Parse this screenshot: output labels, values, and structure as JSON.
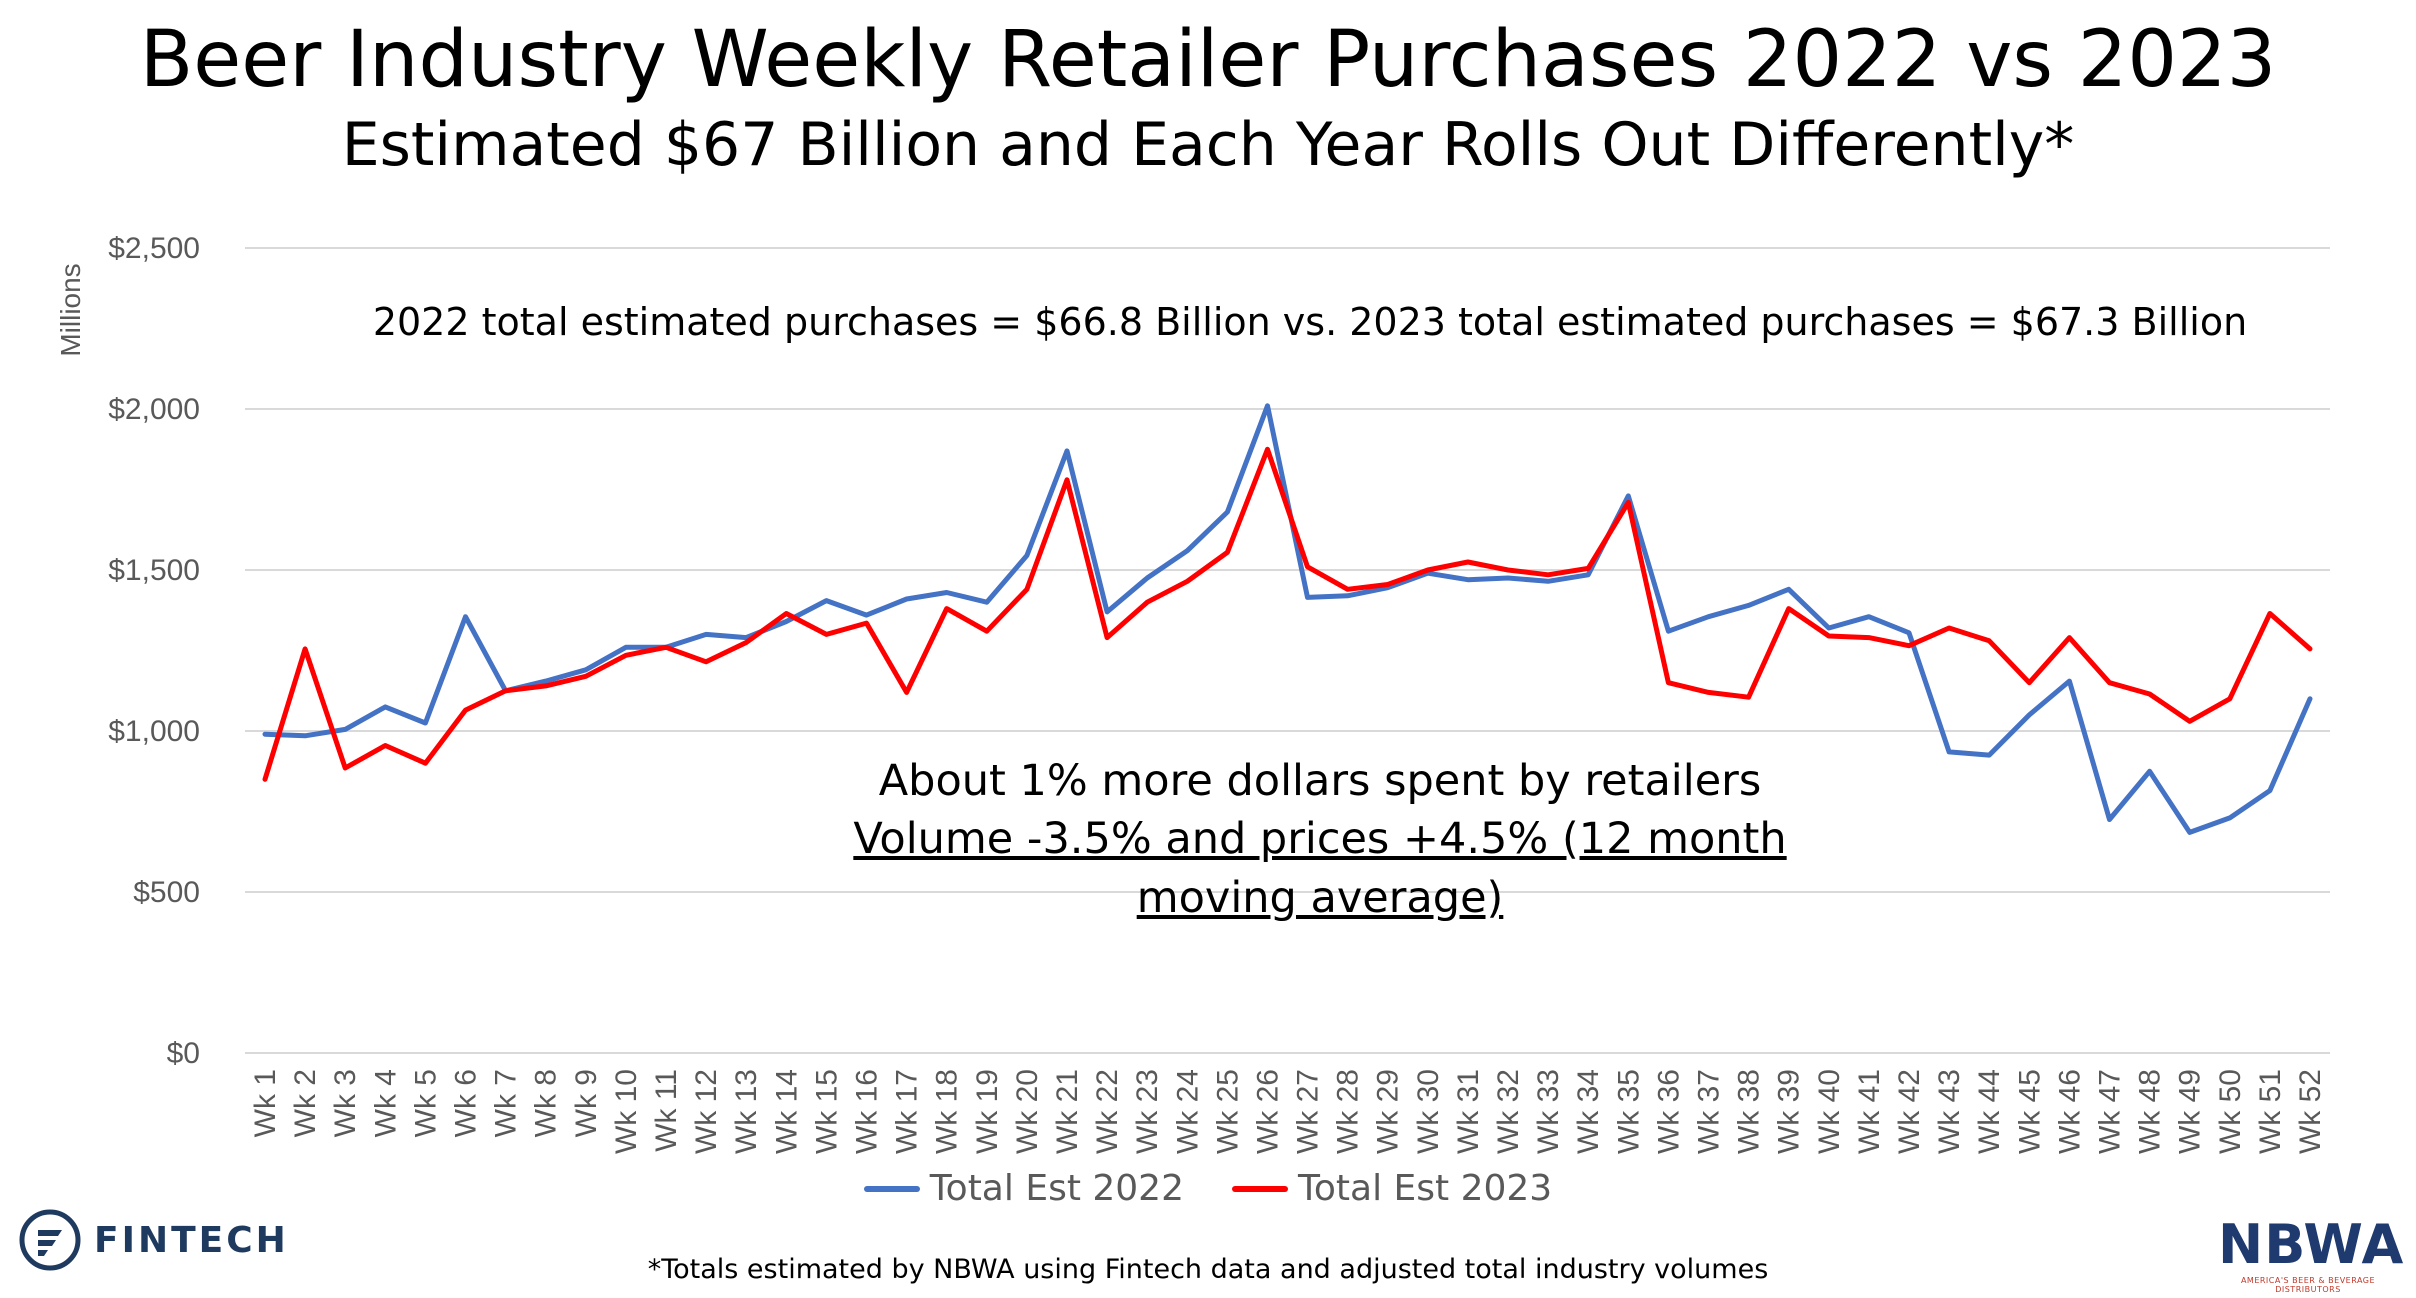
{
  "chart_data": {
    "type": "line",
    "title": "Beer Industry Weekly Retailer Purchases 2022 vs 2023",
    "subtitle": "Estimated $67 Billion and Each Year Rolls Out Differently*",
    "ylabel": "Millions",
    "xlabel": "",
    "ylim": [
      0,
      2500
    ],
    "yticks": [
      0,
      500,
      1000,
      1500,
      2000,
      2500
    ],
    "ytick_labels": [
      "$0",
      "$500",
      "$1,000",
      "$1,500",
      "$2,000",
      "$2,500"
    ],
    "grid": true,
    "legend_position": "bottom",
    "categories": [
      "Wk 1",
      "Wk 2",
      "Wk 3",
      "Wk 4",
      "Wk 5",
      "Wk 6",
      "Wk 7",
      "Wk 8",
      "Wk 9",
      "Wk 10",
      "Wk 11",
      "Wk 12",
      "Wk 13",
      "Wk 14",
      "Wk 15",
      "Wk 16",
      "Wk 17",
      "Wk 18",
      "Wk 19",
      "Wk 20",
      "Wk 21",
      "Wk 22",
      "Wk 23",
      "Wk 24",
      "Wk 25",
      "Wk 26",
      "Wk 27",
      "Wk 28",
      "Wk 29",
      "Wk 30",
      "Wk 31",
      "Wk 32",
      "Wk 33",
      "Wk 34",
      "Wk 35",
      "Wk 36",
      "Wk 37",
      "Wk 38",
      "Wk 39",
      "Wk 40",
      "Wk 41",
      "Wk 42",
      "Wk 43",
      "Wk 44",
      "Wk 45",
      "Wk 46",
      "Wk 47",
      "Wk 48",
      "Wk 49",
      "Wk 50",
      "Wk 51",
      "Wk 52"
    ],
    "series": [
      {
        "name": "Total Est 2022",
        "color": "#4472C4",
        "values": [
          990,
          985,
          1005,
          1075,
          1025,
          1355,
          1125,
          1155,
          1190,
          1260,
          1260,
          1300,
          1290,
          1340,
          1405,
          1360,
          1410,
          1430,
          1400,
          1545,
          1870,
          1370,
          1475,
          1560,
          1680,
          2010,
          1415,
          1420,
          1445,
          1490,
          1470,
          1475,
          1465,
          1485,
          1730,
          1310,
          1355,
          1390,
          1440,
          1320,
          1355,
          1305,
          935,
          925,
          1050,
          1155,
          725,
          875,
          685,
          730,
          815,
          1100
        ]
      },
      {
        "name": "Total Est 2023",
        "color": "#FF0000",
        "values": [
          850,
          1255,
          885,
          955,
          900,
          1065,
          1125,
          1140,
          1170,
          1235,
          1260,
          1215,
          1275,
          1365,
          1300,
          1335,
          1120,
          1380,
          1310,
          1440,
          1780,
          1290,
          1400,
          1465,
          1555,
          1875,
          1510,
          1440,
          1455,
          1500,
          1525,
          1500,
          1485,
          1505,
          1710,
          1150,
          1120,
          1105,
          1380,
          1295,
          1290,
          1265,
          1320,
          1280,
          1150,
          1290,
          1150,
          1115,
          1030,
          1100,
          1365,
          1255
        ]
      }
    ],
    "annotations": [
      "2022 total estimated purchases = $66.8 Billion vs. 2023 total estimated purchases = $67.3 Billion",
      "About 1% more dollars spent by retailers",
      "Volume -3.5% and prices +4.5% (12 month moving average)"
    ]
  },
  "branding": {
    "left_logo_text": "FINTECH",
    "right_logo_text": "NBWA",
    "right_logo_subtext": "AMERICA'S BEER & BEVERAGE DISTRIBUTORS"
  },
  "footnote": "*Totals estimated by NBWA using Fintech data and adjusted total industry volumes"
}
